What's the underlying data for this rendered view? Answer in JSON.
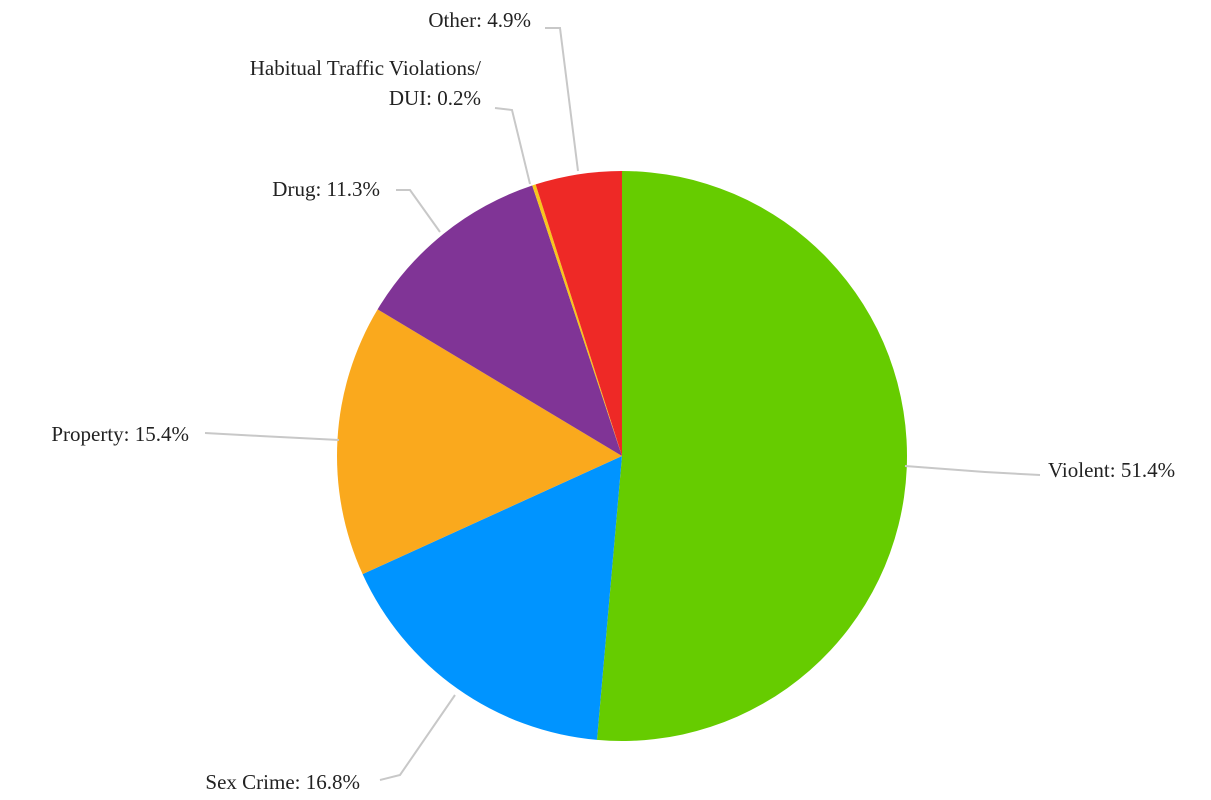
{
  "chart_data": {
    "type": "pie",
    "slices": [
      {
        "label": "Violent",
        "value": 51.4,
        "value_text": "51.4%",
        "color": "#66cc00"
      },
      {
        "label": "Sex Crime",
        "value": 16.8,
        "value_text": "16.8%",
        "color": "#0094ff"
      },
      {
        "label": "Property",
        "value": 15.4,
        "value_text": "15.4%",
        "color": "#faa91d"
      },
      {
        "label": "Drug",
        "value": 11.3,
        "value_text": "11.3%",
        "color": "#803496"
      },
      {
        "label": "Habitual Traffic Violations/ DUI",
        "value": 0.2,
        "value_text": "0.2%",
        "color": "#f7c61c"
      },
      {
        "label": "Other",
        "value": 4.9,
        "value_text": "4.9%",
        "color": "#ee2926"
      }
    ],
    "start": "12 o'clock",
    "direction": "clockwise",
    "legend": "none",
    "labels": "outside with leader lines"
  }
}
